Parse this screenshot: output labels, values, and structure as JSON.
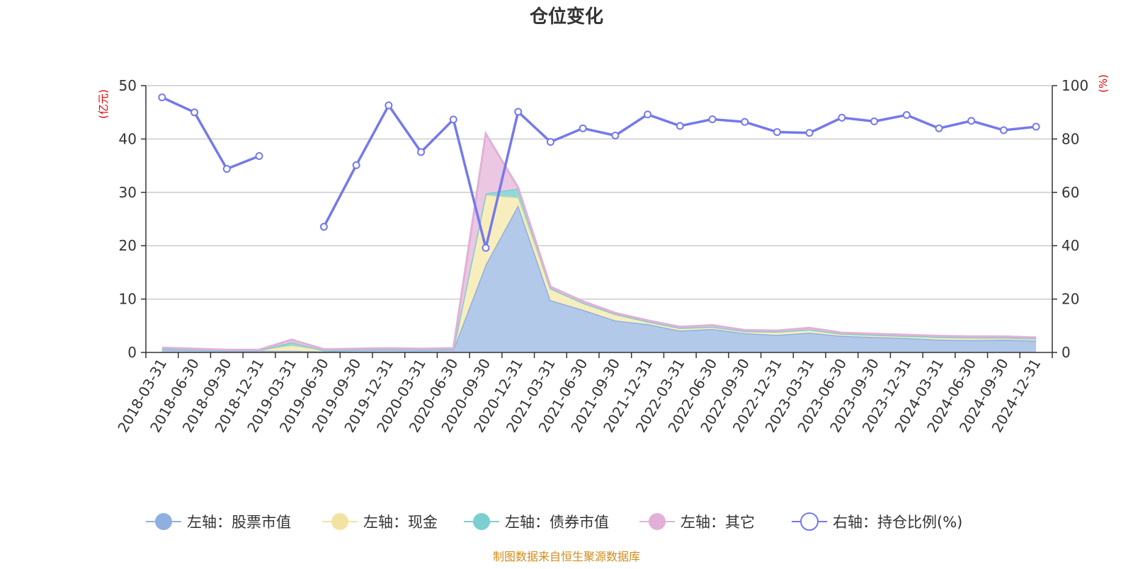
{
  "chart_data": {
    "type": "area",
    "title": "仓位变化",
    "left_axis_unit": "(亿元)",
    "right_axis_unit": "(%)",
    "left_ylim": [
      0,
      50
    ],
    "left_ticks": [
      0,
      10,
      20,
      30,
      40,
      50
    ],
    "right_ylim": [
      0,
      100
    ],
    "right_ticks": [
      0,
      20,
      40,
      60,
      80,
      100
    ],
    "categories": [
      "2018-03-31",
      "2018-06-30",
      "2018-09-30",
      "2018-12-31",
      "2019-03-31",
      "2019-06-30",
      "2019-09-30",
      "2019-12-31",
      "2020-03-31",
      "2020-06-30",
      "2020-09-30",
      "2020-12-31",
      "2021-03-31",
      "2021-06-30",
      "2021-09-30",
      "2021-12-31",
      "2022-03-31",
      "2022-06-30",
      "2022-09-30",
      "2022-12-31",
      "2023-03-31",
      "2023-06-30",
      "2023-09-30",
      "2023-12-31",
      "2024-03-31",
      "2024-06-30",
      "2024-09-30",
      "2024-12-31"
    ],
    "series": [
      {
        "name": "左轴：股票市值",
        "axis": "left",
        "kind": "stack",
        "color": "#8fb0df",
        "fill": "#b3c9ea",
        "values": [
          0.6,
          0.5,
          0.3,
          0.3,
          0.3,
          0.2,
          0.5,
          0.6,
          0.5,
          0.6,
          16.5,
          27.6,
          9.8,
          8.0,
          6.0,
          5.3,
          4.1,
          4.4,
          3.6,
          3.3,
          3.7,
          3.1,
          2.9,
          2.7,
          2.4,
          2.3,
          2.4,
          2.2
        ]
      },
      {
        "name": "左轴：现金",
        "axis": "left",
        "kind": "stack",
        "color": "#f3e3a2",
        "fill": "#f8eebd",
        "values": [
          0.1,
          0.1,
          0.1,
          0.1,
          1.0,
          0.2,
          0.1,
          0.1,
          0.1,
          0.1,
          13.0,
          1.4,
          2.2,
          1.3,
          1.2,
          0.5,
          0.5,
          0.4,
          0.4,
          0.6,
          0.6,
          0.4,
          0.4,
          0.4,
          0.5,
          0.5,
          0.4,
          0.4
        ]
      },
      {
        "name": "左轴：债券市值",
        "axis": "left",
        "kind": "stack",
        "color": "#7ccfd0",
        "fill": "#96d8d8",
        "values": [
          0,
          0,
          0,
          0,
          0.6,
          0,
          0,
          0,
          0,
          0,
          0.3,
          1.7,
          0,
          0,
          0,
          0,
          0,
          0,
          0,
          0,
          0,
          0,
          0,
          0,
          0,
          0,
          0,
          0
        ]
      },
      {
        "name": "左轴：其它",
        "axis": "left",
        "kind": "stack",
        "color": "#e2b0d6",
        "fill": "#ebc7e2",
        "values": [
          0.2,
          0.1,
          0.1,
          0.1,
          0.5,
          0.2,
          0.1,
          0.1,
          0.1,
          0.1,
          11.2,
          0.2,
          0.3,
          0.3,
          0.2,
          0.2,
          0.2,
          0.3,
          0.2,
          0.2,
          0.3,
          0.2,
          0.2,
          0.2,
          0.2,
          0.2,
          0.2,
          0.2
        ]
      },
      {
        "name": "右轴：持仓比例(%)",
        "axis": "right",
        "kind": "line",
        "color": "#7479ec",
        "values": [
          95.6,
          90.0,
          68.8,
          73.6,
          null,
          47.1,
          70.2,
          92.6,
          75.1,
          87.3,
          39.2,
          90.2,
          78.9,
          84.0,
          81.3,
          89.2,
          84.9,
          87.4,
          86.4,
          82.6,
          82.3,
          88.0,
          86.6,
          89.0,
          84.0,
          86.8,
          83.3,
          84.6
        ]
      }
    ],
    "legend_position": "bottom",
    "grid": true
  },
  "footer": {
    "source": "制图数据来自恒生聚源数据库"
  }
}
